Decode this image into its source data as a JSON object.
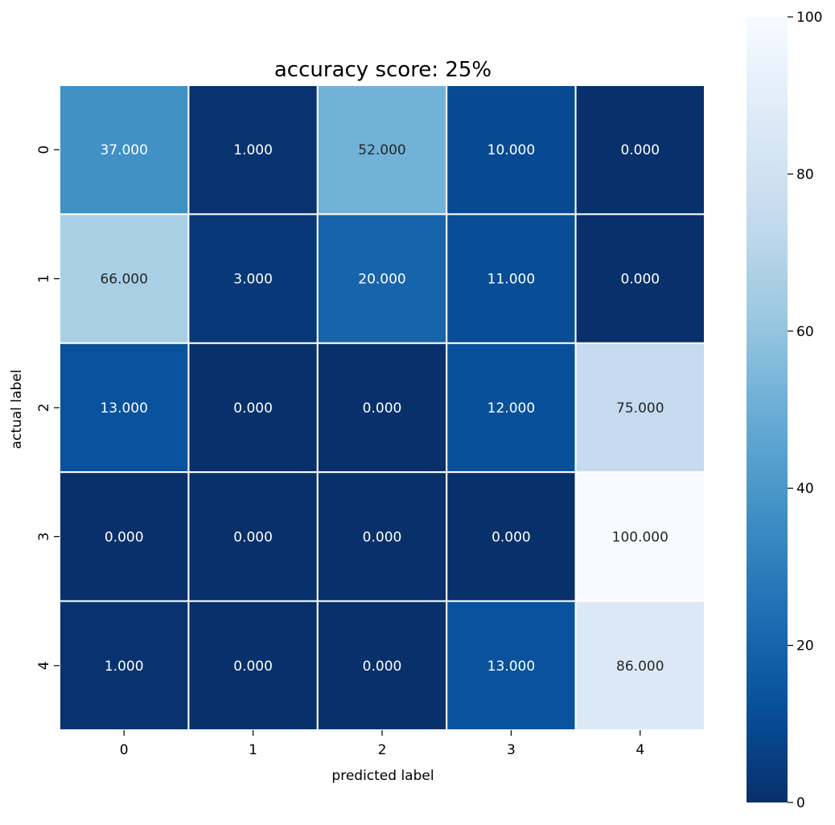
{
  "chart_data": {
    "type": "heatmap",
    "title": "accuracy score: 25%",
    "xlabel": "predicted label",
    "ylabel": "actual label",
    "x_categories": [
      "0",
      "1",
      "2",
      "3",
      "4"
    ],
    "y_categories": [
      "0",
      "1",
      "2",
      "3",
      "4"
    ],
    "values": [
      [
        37,
        1,
        52,
        10,
        0
      ],
      [
        66,
        3,
        20,
        11,
        0
      ],
      [
        13,
        0,
        0,
        12,
        75
      ],
      [
        0,
        0,
        0,
        0,
        100
      ],
      [
        1,
        0,
        0,
        13,
        86
      ]
    ],
    "cell_labels": [
      [
        "37.000",
        "1.000",
        "52.000",
        "10.000",
        "0.000"
      ],
      [
        "66.000",
        "3.000",
        "20.000",
        "11.000",
        "0.000"
      ],
      [
        "13.000",
        "0.000",
        "0.000",
        "12.000",
        "75.000"
      ],
      [
        "0.000",
        "0.000",
        "0.000",
        "0.000",
        "100.000"
      ],
      [
        "1.000",
        "0.000",
        "0.000",
        "13.000",
        "86.000"
      ]
    ],
    "colormap": "Blues_r",
    "colorbar": {
      "range": [
        0,
        100
      ],
      "ticks": [
        "0",
        "20",
        "40",
        "60",
        "80",
        "100"
      ]
    },
    "cell_border_color": "#ffffff",
    "grid": false
  }
}
